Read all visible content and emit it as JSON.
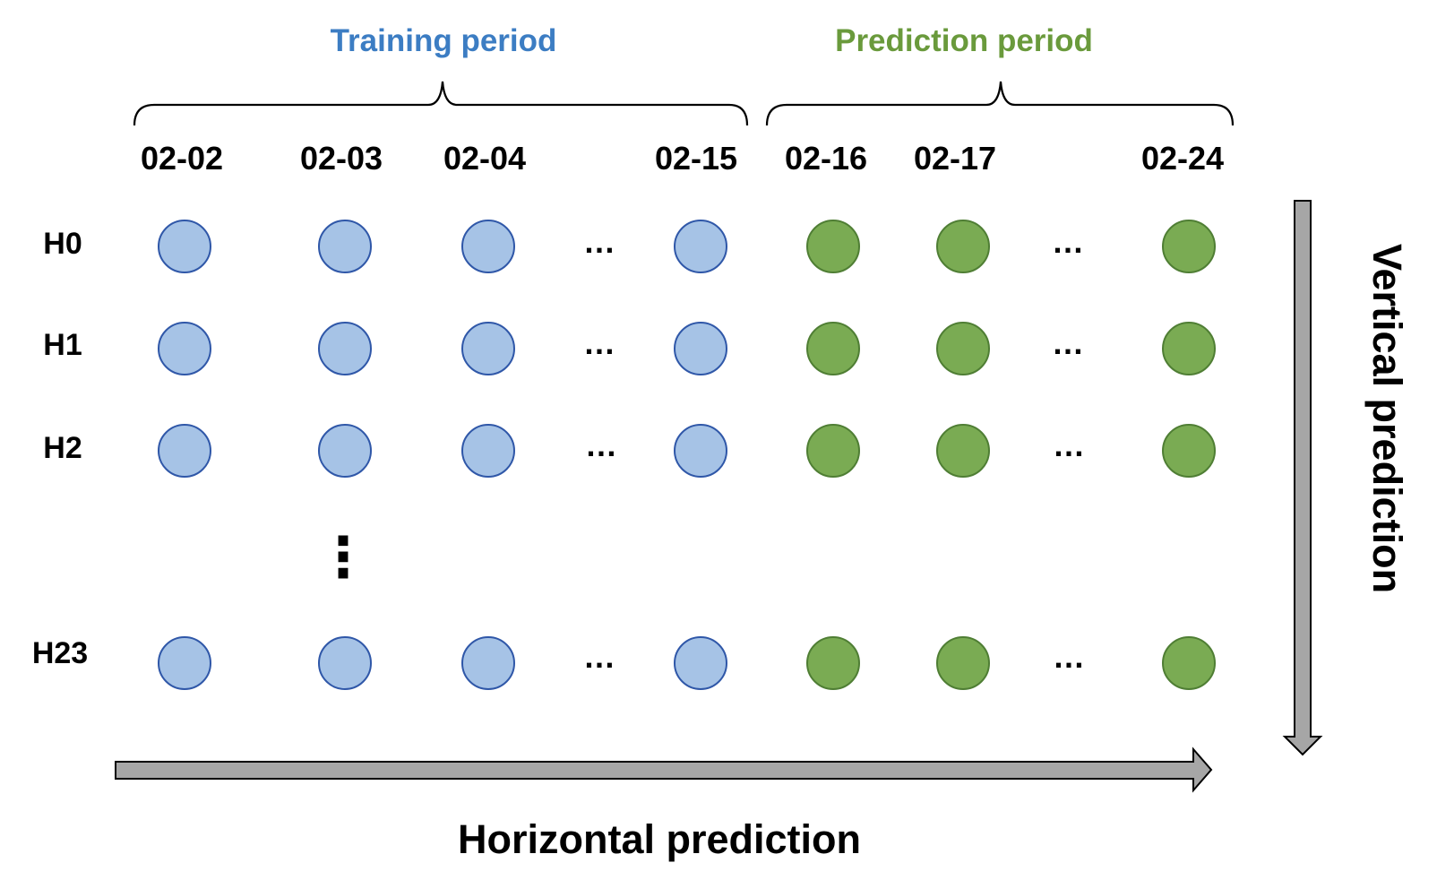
{
  "headers": {
    "training": {
      "label": "Training period",
      "color": "#3c7dc3"
    },
    "prediction": {
      "label": "Prediction period",
      "color": "#6a9a3c"
    }
  },
  "dates": [
    "02-02",
    "02-03",
    "02-04",
    "02-15",
    "02-16",
    "02-17",
    "02-24"
  ],
  "hours": [
    "H0",
    "H1",
    "H2",
    "H23"
  ],
  "ellipsis": "…",
  "vertical_ellipsis": "⋮",
  "training_node": {
    "fill": "#a6c3e6",
    "stroke": "#2f57a8"
  },
  "prediction_node": {
    "fill": "#7aab53",
    "stroke": "#4f7e34"
  },
  "arrow_color": "#a6a6a6",
  "labels": {
    "horizontal": "Horizontal  prediction",
    "vertical": "Vertical prediction"
  }
}
